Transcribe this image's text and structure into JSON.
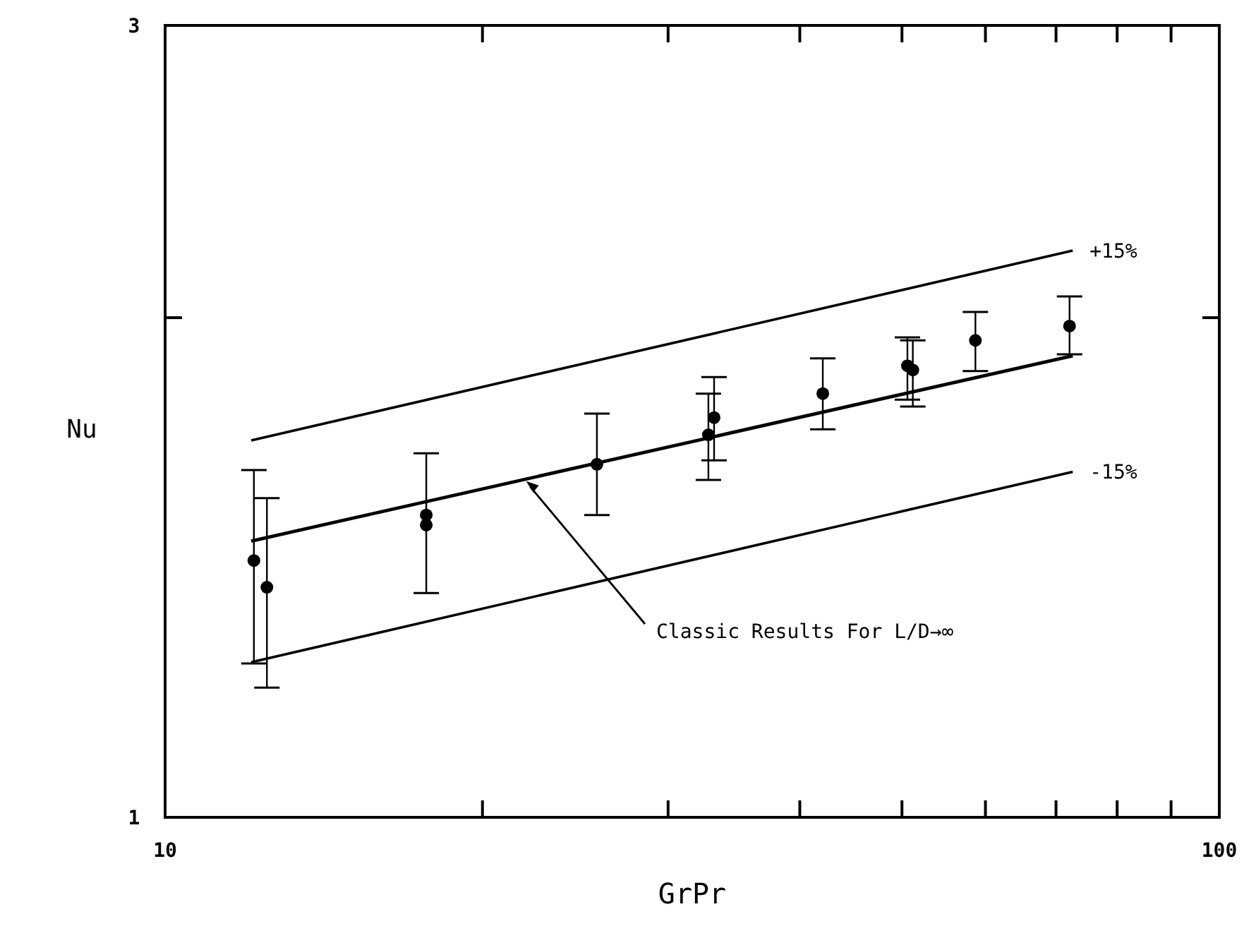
{
  "chart_data": {
    "type": "scatter",
    "xlabel": "GrPr",
    "ylabel": "Nu",
    "log": "xy",
    "grid": false,
    "xlim": [
      10,
      100
    ],
    "xticks": [
      10,
      {
        "value": 20,
        "label": null
      },
      {
        "value": 30,
        "label": null
      },
      {
        "value": 40,
        "label": null
      },
      {
        "value": 50,
        "label": null
      },
      {
        "value": 60,
        "label": null
      },
      {
        "value": 70,
        "label": null
      },
      {
        "value": 80,
        "label": null
      },
      {
        "value": 90,
        "label": null
      },
      100
    ],
    "ylim": [
      1,
      3
    ],
    "yticks": [
      1,
      {
        "value": 2,
        "label": null
      },
      3
    ],
    "series": [
      {
        "color": "#000000",
        "marker": "circle",
        "x": [
          12.14,
          12.49,
          17.69,
          17.69,
          25.68,
          32.76,
          33.17,
          42.06,
          50.6,
          51.2,
          58.7,
          72.1
        ],
        "values": [
          1.428,
          1.376,
          1.521,
          1.5,
          1.632,
          1.7,
          1.741,
          1.8,
          1.871,
          1.86,
          1.938,
          1.977
        ],
        "errors": [
          [
            1.238,
            1.619
          ],
          [
            1.197,
            1.557
          ],
          [
            1.365,
            1.657
          ],
          null,
          [
            1.521,
            1.751
          ],
          [
            1.597,
            1.8
          ],
          [
            1.641,
            1.842
          ],
          [
            1.713,
            1.89
          ],
          [
            1.785,
            1.946
          ],
          [
            1.768,
            1.938
          ],
          [
            1.857,
            2.016
          ],
          [
            1.901,
            2.06
          ]
        ]
      },
      {
        "type": "line",
        "color": "#000000",
        "marker": "none",
        "line_style": "solid",
        "x": [
          12.07,
          72.6
        ],
        "values": [
          1.467,
          1.897
        ]
      },
      {
        "type": "line",
        "name": "+15%",
        "color": "#000000",
        "marker": "none",
        "line_style": "solid",
        "x": [
          12.07,
          72.6
        ],
        "values": [
          1.687,
          2.195
        ]
      },
      {
        "type": "line",
        "name": "-15%",
        "color": "#000000",
        "marker": "none",
        "line_style": "solid",
        "x": [
          12.07,
          72.6
        ],
        "values": [
          1.24,
          1.615
        ]
      }
    ],
    "annotations": [
      {
        "text": "Classic Results For L/D→∞",
        "x": 22.0,
        "y": 1.594
      }
    ]
  }
}
